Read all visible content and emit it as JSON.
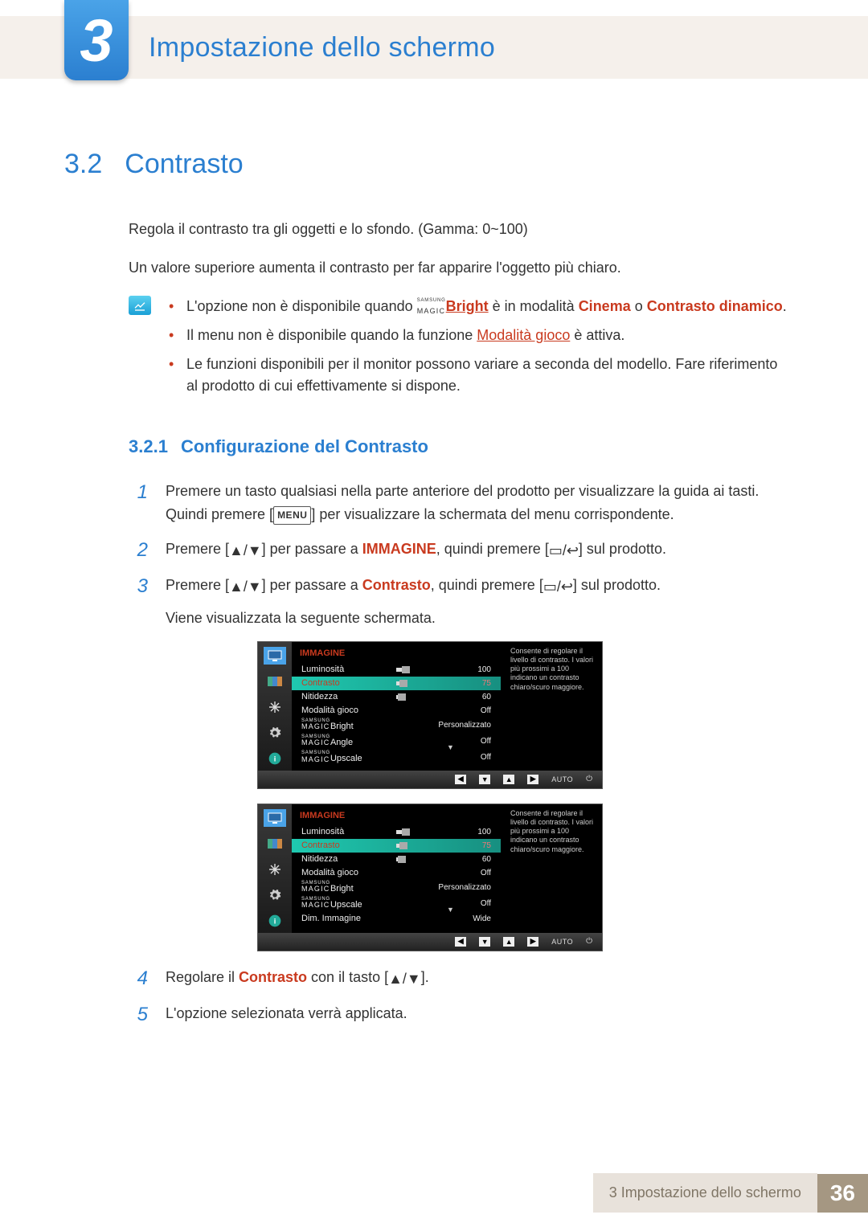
{
  "chapter": {
    "num": "3",
    "title": "Impostazione dello schermo"
  },
  "section": {
    "num": "3.2",
    "title": "Contrasto"
  },
  "intro": {
    "p1": "Regola il contrasto tra gli oggetti e lo sfondo. (Gamma: 0~100)",
    "p2": "Un valore superiore aumenta il contrasto per far apparire l'oggetto più chiaro."
  },
  "notes": {
    "n1_a": "L'opzione non è disponibile quando ",
    "n1_b": "Bright",
    "n1_c": " è in modalità ",
    "n1_d": "Cinema",
    "n1_e": " o ",
    "n1_f": "Contrasto dinamico",
    "n1_g": ".",
    "n2_a": "Il menu non è disponibile quando la funzione ",
    "n2_b": "Modalità gioco",
    "n2_c": " è attiva.",
    "n3": "Le funzioni disponibili per il monitor possono variare a seconda del modello. Fare riferimento al prodotto di cui effettivamente si dispone."
  },
  "subsection": {
    "num": "3.2.1",
    "title": "Configurazione del Contrasto"
  },
  "steps": {
    "s1_a": "Premere un tasto qualsiasi nella parte anteriore del prodotto per visualizzare la guida ai tasti. Quindi premere [",
    "s1_menu": "MENU",
    "s1_b": "] per visualizzare la schermata del menu corrispondente.",
    "s2_a": "Premere [",
    "s2_b": "] per passare a ",
    "s2_c": "IMMAGINE",
    "s2_d": ", quindi premere [",
    "s2_e": "] sul prodotto.",
    "s3_a": "Premere [",
    "s3_b": "] per passare a ",
    "s3_c": "Contrasto",
    "s3_d": ", quindi premere [",
    "s3_e": "] sul prodotto.",
    "s3_f": "Viene visualizzata la seguente schermata.",
    "s4_a": "Regolare il ",
    "s4_b": "Contrasto",
    "s4_c": " con il tasto [",
    "s4_d": "].",
    "s5": "L'opzione selezionata verrà applicata."
  },
  "osd": {
    "tip": "Consente di regolare il livello di contrasto. I valori più prossimi a 100 indicano un contrasto chiaro/scuro maggiore.",
    "title": "IMMAGINE",
    "auto": "AUTO",
    "colors": {
      "background": "#000000",
      "sidebar_bg": "#2c2c2c",
      "sidebar_active": "#4aa3e8",
      "title_color": "#c93a1f",
      "row_sel_bg": "#1fc9b0",
      "bar_bg": "#2a2a2a",
      "bar_fill": "#dddddd",
      "nav_bg": "#333333",
      "text": "#eeeeee"
    },
    "screen1_rows": [
      {
        "label": "Luminosità",
        "value": "100",
        "bar": 100
      },
      {
        "label": "Contrasto",
        "value": "75",
        "bar": 75,
        "selected": true
      },
      {
        "label": "Nitidezza",
        "value": "60",
        "bar": 60
      },
      {
        "label": "Modalità gioco",
        "value": "Off"
      },
      {
        "label_magic": "Bright",
        "value": "Personalizzato"
      },
      {
        "label_magic": "Angle",
        "value": "Off"
      },
      {
        "label_magic": "Upscale",
        "value": "Off"
      }
    ],
    "screen2_rows": [
      {
        "label": "Luminosità",
        "value": "100",
        "bar": 100
      },
      {
        "label": "Contrasto",
        "value": "75",
        "bar": 75,
        "selected": true
      },
      {
        "label": "Nitidezza",
        "value": "60",
        "bar": 60
      },
      {
        "label": "Modalità gioco",
        "value": "Off"
      },
      {
        "label_magic": "Bright",
        "value": "Personalizzato"
      },
      {
        "label_magic": "Upscale",
        "value": "Off"
      },
      {
        "label": "Dim. Immagine",
        "value": "Wide"
      }
    ]
  },
  "magic": {
    "top": "SAMSUNG",
    "bottom": "MAGIC"
  },
  "footer": {
    "title": "3 Impostazione dello schermo",
    "page": "36"
  }
}
